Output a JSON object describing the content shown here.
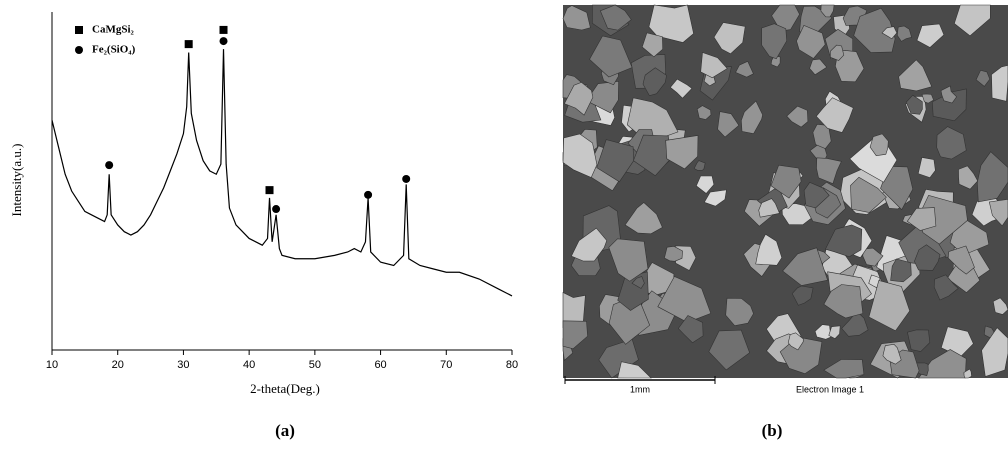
{
  "chart_data": {
    "type": "line",
    "color": "#000000",
    "xlabel": "2-theta(Deg.)",
    "ylabel": "Intensity(a.u.)",
    "xlim": [
      10,
      80
    ],
    "xticks": [
      10,
      20,
      30,
      40,
      50,
      60,
      70,
      80
    ],
    "ylim": [
      0,
      100
    ],
    "x": [
      10,
      11,
      12,
      13,
      14,
      15,
      16,
      17,
      18,
      18.4,
      18.7,
      19,
      20,
      21,
      22,
      23,
      24,
      25,
      26,
      27,
      28,
      29,
      30,
      30.5,
      30.8,
      31.2,
      32,
      33,
      34,
      35,
      35.7,
      36.1,
      36.5,
      37,
      38,
      39,
      40,
      41,
      42,
      42.8,
      43.1,
      43.5,
      44.1,
      44.6,
      45,
      47,
      50,
      53,
      55,
      56,
      57,
      57.7,
      58.1,
      58.5,
      60,
      62,
      63.5,
      63.9,
      64.3,
      66,
      68,
      70,
      72,
      75,
      78,
      80
    ],
    "values": [
      68,
      60,
      52,
      47,
      44,
      41,
      40,
      39,
      38,
      40,
      52,
      40,
      37,
      35,
      34,
      35,
      37,
      40,
      44,
      48,
      53,
      58,
      64,
      72,
      88,
      70,
      62,
      56,
      53,
      52,
      55,
      89,
      55,
      42,
      37,
      35,
      33,
      32,
      31,
      33,
      45,
      32,
      40,
      30,
      28,
      27,
      27,
      28,
      29,
      30,
      29,
      32,
      45,
      29,
      26,
      25,
      28,
      49,
      27,
      25,
      24,
      23,
      23,
      21,
      18,
      16
    ],
    "markers": [
      {
        "name": "CaMgSi₂",
        "shape": "square",
        "x": [
          30.8,
          36.1,
          43.1
        ],
        "values": [
          90.5,
          94.7,
          47.3
        ]
      },
      {
        "name": "Fe₂(SiO₄)",
        "shape": "circle",
        "x": [
          18.7,
          36.1,
          44.1,
          58.1,
          63.9
        ],
        "values": [
          54.7,
          91.4,
          41.7,
          45.9,
          50.6
        ]
      }
    ]
  },
  "image": {
    "scale_bar": "1mm",
    "caption": "Electron Image 1"
  },
  "panels": [
    "(a)",
    "(b)"
  ]
}
